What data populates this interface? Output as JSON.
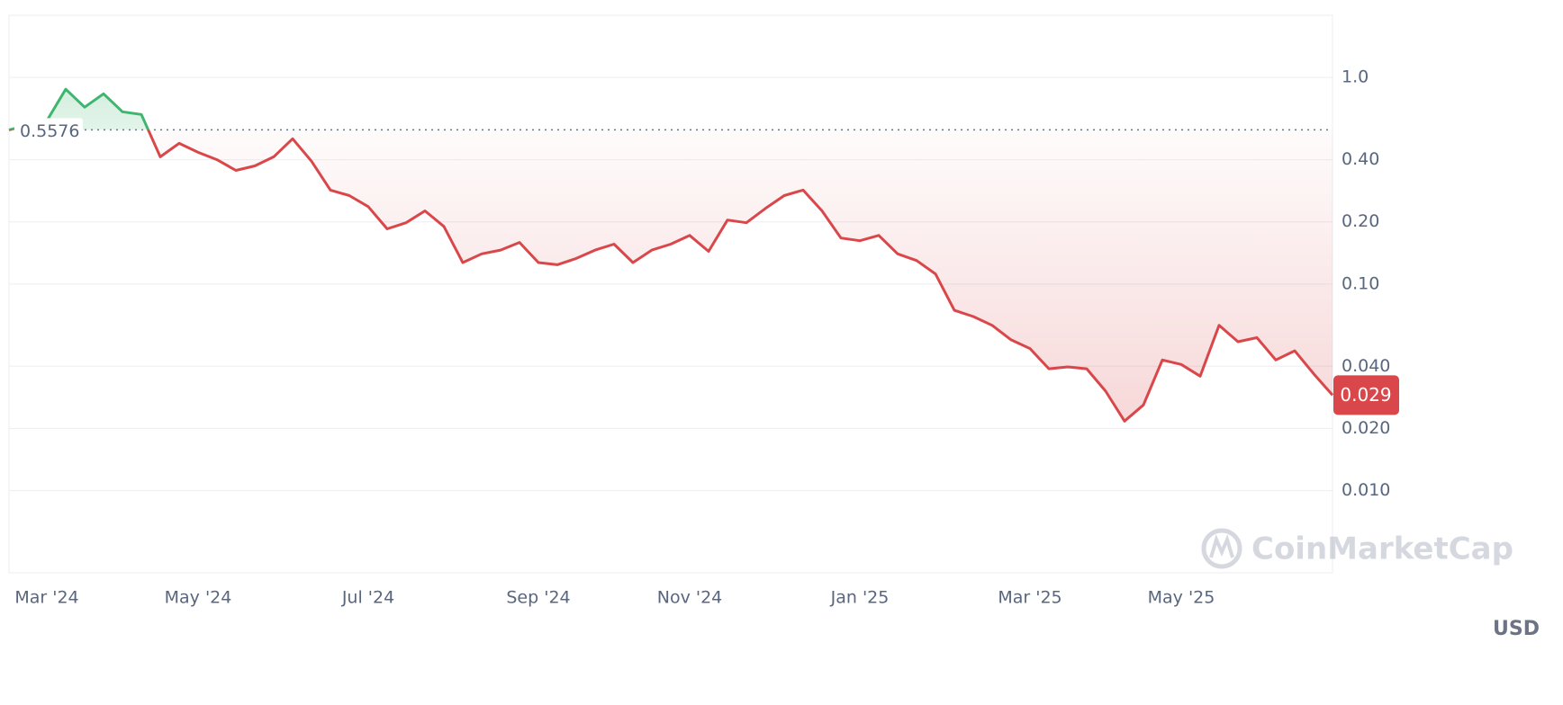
{
  "chart_data": {
    "type": "line",
    "log_scale": true,
    "grid": true,
    "categories": [
      null,
      null,
      "Mar '24",
      null,
      null,
      null,
      null,
      null,
      null,
      null,
      "May '24",
      null,
      null,
      null,
      null,
      null,
      null,
      null,
      null,
      "Jul '24",
      null,
      null,
      null,
      null,
      null,
      null,
      null,
      null,
      "Sep '24",
      null,
      null,
      null,
      null,
      null,
      null,
      null,
      "Nov '24",
      null,
      null,
      null,
      null,
      null,
      null,
      null,
      null,
      "Jan '25",
      null,
      null,
      null,
      null,
      null,
      null,
      null,
      null,
      "Mar '25",
      null,
      null,
      null,
      null,
      null,
      null,
      null,
      "May '25",
      null,
      null,
      null,
      null,
      null,
      null,
      null,
      null
    ],
    "series": [
      {
        "name": null,
        "color_up": "#3fb66f",
        "color_down": "#d9474a",
        "values": [
          0.5576,
          0.587,
          0.617,
          0.877,
          0.718,
          0.834,
          0.682,
          0.662,
          0.413,
          0.48,
          0.434,
          0.4,
          0.355,
          0.373,
          0.413,
          0.505,
          0.393,
          0.285,
          0.268,
          0.237,
          0.185,
          0.198,
          0.226,
          0.19,
          0.127,
          0.14,
          0.146,
          0.159,
          0.127,
          0.124,
          0.133,
          0.146,
          0.156,
          0.127,
          0.146,
          0.156,
          0.172,
          0.144,
          0.204,
          0.198,
          0.232,
          0.268,
          0.285,
          0.226,
          0.167,
          0.162,
          0.172,
          0.14,
          0.13,
          0.112,
          0.0746,
          0.0696,
          0.0631,
          0.0537,
          0.0487,
          0.0389,
          0.0397,
          0.0389,
          0.0303,
          0.0217,
          0.026,
          0.0429,
          0.0408,
          0.0358,
          0.0631,
          0.0526,
          0.055,
          0.0429,
          0.0475,
          0.0368,
          0.029
        ]
      }
    ],
    "baseline": 0.5576,
    "ylim": [
      0.004,
      2
    ],
    "yticks": [
      {
        "value": 0.01,
        "label": "0.010"
      },
      {
        "value": 0.02,
        "label": "0.020"
      },
      {
        "value": 0.04,
        "label": "0.040"
      },
      {
        "value": 0.1,
        "label": "0.10"
      },
      {
        "value": 0.2,
        "label": "0.20"
      },
      {
        "value": 0.4,
        "label": "0.40"
      },
      {
        "value": 1,
        "label": "1.0"
      }
    ],
    "currency": "USD",
    "watermark": "CoinMarketCap"
  }
}
